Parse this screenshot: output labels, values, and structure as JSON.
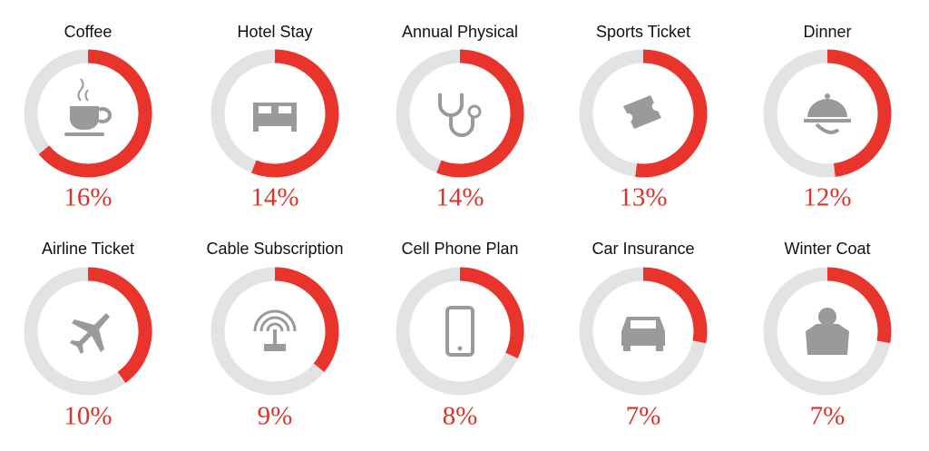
{
  "chart_data": {
    "type": "ring",
    "categories": [
      "Coffee",
      "Hotel Stay",
      "Annual Physical",
      "Sports Ticket",
      "Dinner",
      "Airline Ticket",
      "Cable Subscription",
      "Cell Phone Plan",
      "Car Insurance",
      "Winter Coat"
    ],
    "values": [
      16,
      14,
      14,
      13,
      12,
      10,
      9,
      8,
      7,
      7
    ],
    "value_labels": [
      "16%",
      "14%",
      "14%",
      "13%",
      "12%",
      "10%",
      "9%",
      "8%",
      "7%",
      "7%"
    ],
    "ylim": [
      0,
      25
    ],
    "color": "#e8342a",
    "track_color": "#e3e3e3"
  }
}
